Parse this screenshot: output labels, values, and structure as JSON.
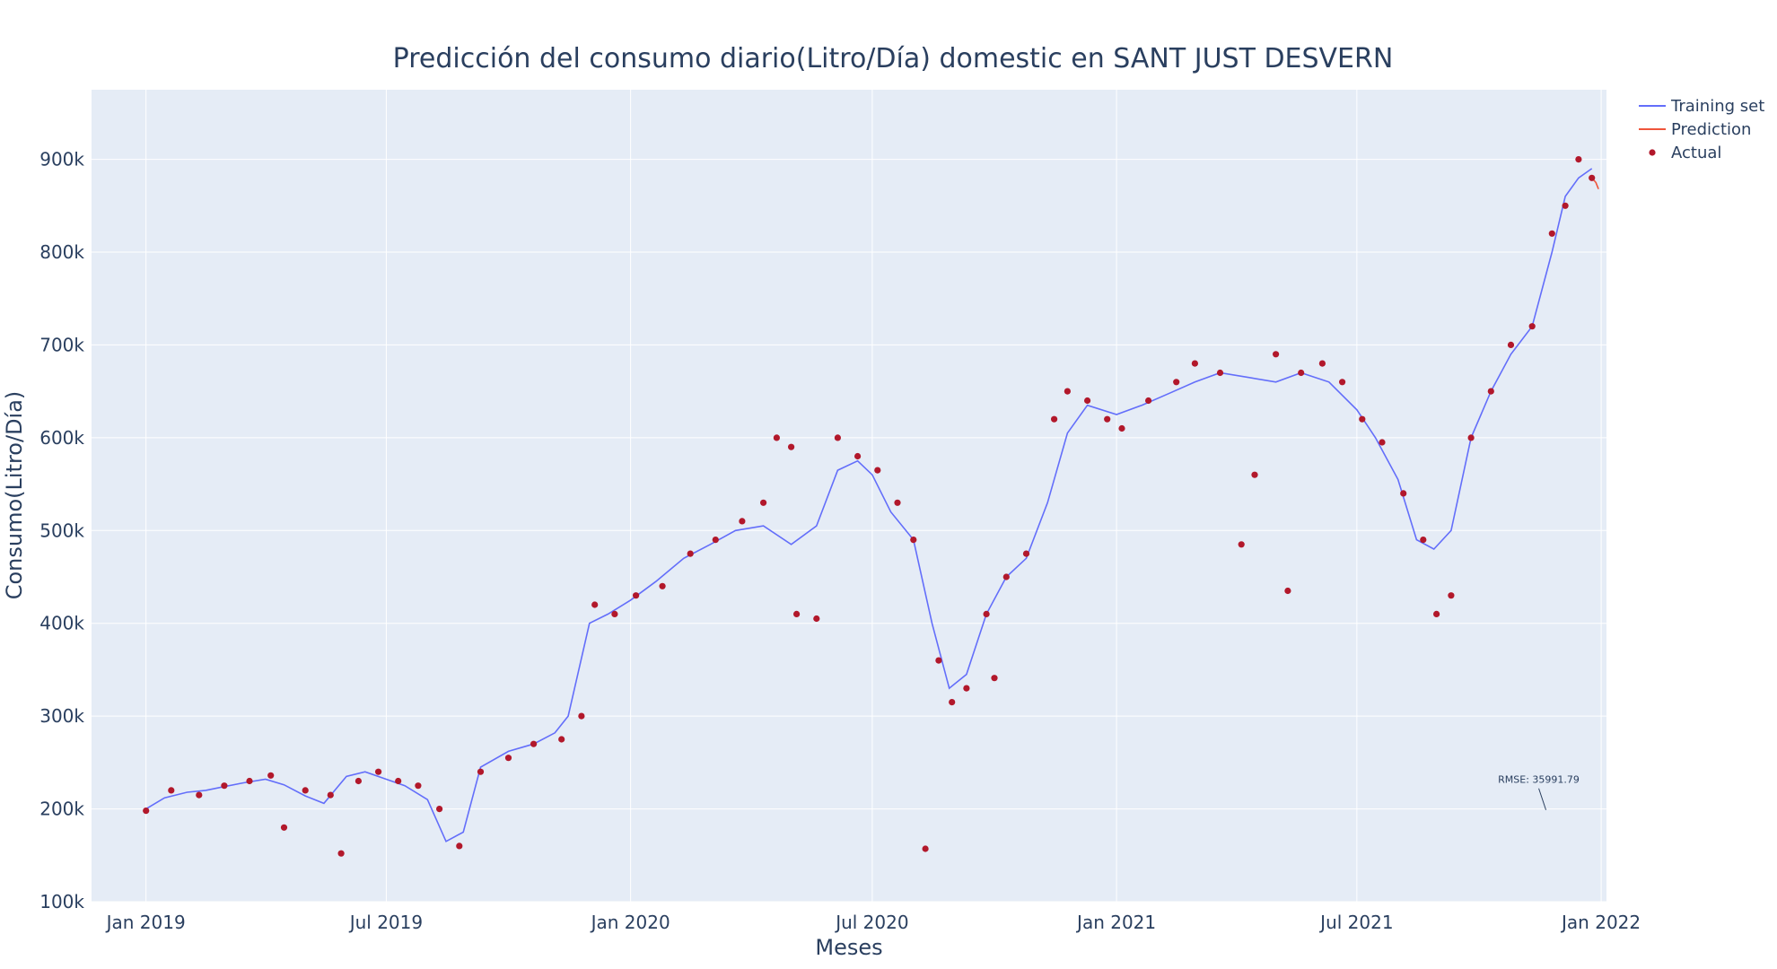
{
  "chart_data": {
    "type": "line",
    "title": "Predicción del consumo diario(Litro/Día) domestic en SANT JUST DESVERN",
    "xlabel": "Meses",
    "ylabel": "Consumo(Litro/Día)",
    "ylim": [
      100000,
      975000
    ],
    "xlim": [
      "2018-11-21",
      "2022-01-05"
    ],
    "grid": true,
    "legend_position": "top-right",
    "x_ticks": [
      {
        "date": "2019-01-01",
        "label": "Jan 2019"
      },
      {
        "date": "2019-07-01",
        "label": "Jul 2019"
      },
      {
        "date": "2020-01-01",
        "label": "Jan 2020"
      },
      {
        "date": "2020-07-01",
        "label": "Jul 2020"
      },
      {
        "date": "2021-01-01",
        "label": "Jan 2021"
      },
      {
        "date": "2021-07-01",
        "label": "Jul 2021"
      },
      {
        "date": "2022-01-01",
        "label": "Jan 2022"
      }
    ],
    "y_ticks": [
      {
        "value": 100000,
        "label": "100k"
      },
      {
        "value": 200000,
        "label": "200k"
      },
      {
        "value": 300000,
        "label": "300k"
      },
      {
        "value": 400000,
        "label": "400k"
      },
      {
        "value": 500000,
        "label": "500k"
      },
      {
        "value": 600000,
        "label": "600k"
      },
      {
        "value": 700000,
        "label": "700k"
      },
      {
        "value": 800000,
        "label": "800k"
      },
      {
        "value": 900000,
        "label": "900k"
      }
    ],
    "series": [
      {
        "name": "Training set",
        "kind": "line",
        "color": "#636efa",
        "points": [
          [
            "2019-01-01",
            200000
          ],
          [
            "2019-01-15",
            212000
          ],
          [
            "2019-02-01",
            218000
          ],
          [
            "2019-02-15",
            220000
          ],
          [
            "2019-03-01",
            224000
          ],
          [
            "2019-03-15",
            228000
          ],
          [
            "2019-04-01",
            232000
          ],
          [
            "2019-04-15",
            226000
          ],
          [
            "2019-05-01",
            214000
          ],
          [
            "2019-05-15",
            206000
          ],
          [
            "2019-06-01",
            235000
          ],
          [
            "2019-06-15",
            240000
          ],
          [
            "2019-07-01",
            232000
          ],
          [
            "2019-07-15",
            225000
          ],
          [
            "2019-08-01",
            210000
          ],
          [
            "2019-08-15",
            165000
          ],
          [
            "2019-08-28",
            175000
          ],
          [
            "2019-09-10",
            245000
          ],
          [
            "2019-10-01",
            262000
          ],
          [
            "2019-10-20",
            270000
          ],
          [
            "2019-11-05",
            282000
          ],
          [
            "2019-11-15",
            300000
          ],
          [
            "2019-12-01",
            400000
          ],
          [
            "2019-12-15",
            410000
          ],
          [
            "2020-01-01",
            425000
          ],
          [
            "2020-01-20",
            445000
          ],
          [
            "2020-02-10",
            470000
          ],
          [
            "2020-03-01",
            485000
          ],
          [
            "2020-03-20",
            500000
          ],
          [
            "2020-04-10",
            505000
          ],
          [
            "2020-05-01",
            485000
          ],
          [
            "2020-05-20",
            505000
          ],
          [
            "2020-06-05",
            565000
          ],
          [
            "2020-06-20",
            575000
          ],
          [
            "2020-07-01",
            560000
          ],
          [
            "2020-07-15",
            520000
          ],
          [
            "2020-08-01",
            490000
          ],
          [
            "2020-08-15",
            400000
          ],
          [
            "2020-08-28",
            330000
          ],
          [
            "2020-09-10",
            345000
          ],
          [
            "2020-09-25",
            410000
          ],
          [
            "2020-10-10",
            450000
          ],
          [
            "2020-10-25",
            470000
          ],
          [
            "2020-11-10",
            530000
          ],
          [
            "2020-11-25",
            605000
          ],
          [
            "2020-12-10",
            635000
          ],
          [
            "2021-01-01",
            625000
          ],
          [
            "2021-01-20",
            635000
          ],
          [
            "2021-02-10",
            648000
          ],
          [
            "2021-03-01",
            660000
          ],
          [
            "2021-03-20",
            670000
          ],
          [
            "2021-04-10",
            665000
          ],
          [
            "2021-05-01",
            660000
          ],
          [
            "2021-05-20",
            670000
          ],
          [
            "2021-06-10",
            660000
          ],
          [
            "2021-07-01",
            630000
          ],
          [
            "2021-07-15",
            600000
          ],
          [
            "2021-08-01",
            555000
          ],
          [
            "2021-08-15",
            490000
          ],
          [
            "2021-08-28",
            480000
          ],
          [
            "2021-09-10",
            500000
          ],
          [
            "2021-09-25",
            600000
          ],
          [
            "2021-10-10",
            650000
          ],
          [
            "2021-10-25",
            690000
          ],
          [
            "2021-11-10",
            720000
          ],
          [
            "2021-11-25",
            800000
          ],
          [
            "2021-12-05",
            860000
          ],
          [
            "2021-12-15",
            880000
          ],
          [
            "2021-12-25",
            890000
          ]
        ]
      },
      {
        "name": "Prediction",
        "kind": "line",
        "color": "#ef553b",
        "points": [
          [
            "2021-12-25",
            880000
          ],
          [
            "2021-12-28",
            875000
          ],
          [
            "2021-12-30",
            868000
          ]
        ]
      },
      {
        "name": "Actual",
        "kind": "markers",
        "color": "#b2182b",
        "points": [
          [
            "2019-01-01",
            198000
          ],
          [
            "2019-01-20",
            220000
          ],
          [
            "2019-02-10",
            215000
          ],
          [
            "2019-03-01",
            225000
          ],
          [
            "2019-03-20",
            230000
          ],
          [
            "2019-04-05",
            236000
          ],
          [
            "2019-04-15",
            180000
          ],
          [
            "2019-05-01",
            220000
          ],
          [
            "2019-05-20",
            215000
          ],
          [
            "2019-05-28",
            152000
          ],
          [
            "2019-06-10",
            230000
          ],
          [
            "2019-06-25",
            240000
          ],
          [
            "2019-07-10",
            230000
          ],
          [
            "2019-07-25",
            225000
          ],
          [
            "2019-08-10",
            200000
          ],
          [
            "2019-08-25",
            160000
          ],
          [
            "2019-09-10",
            240000
          ],
          [
            "2019-10-01",
            255000
          ],
          [
            "2019-10-20",
            270000
          ],
          [
            "2019-11-10",
            275000
          ],
          [
            "2019-11-25",
            300000
          ],
          [
            "2019-12-05",
            420000
          ],
          [
            "2019-12-20",
            410000
          ],
          [
            "2020-01-05",
            430000
          ],
          [
            "2020-01-25",
            440000
          ],
          [
            "2020-02-15",
            475000
          ],
          [
            "2020-03-05",
            490000
          ],
          [
            "2020-03-25",
            510000
          ],
          [
            "2020-04-10",
            530000
          ],
          [
            "2020-04-20",
            600000
          ],
          [
            "2020-05-01",
            590000
          ],
          [
            "2020-05-05",
            410000
          ],
          [
            "2020-05-20",
            405000
          ],
          [
            "2020-06-05",
            600000
          ],
          [
            "2020-06-20",
            580000
          ],
          [
            "2020-07-05",
            565000
          ],
          [
            "2020-07-20",
            530000
          ],
          [
            "2020-08-01",
            490000
          ],
          [
            "2020-08-10",
            157000
          ],
          [
            "2020-08-20",
            360000
          ],
          [
            "2020-08-30",
            315000
          ],
          [
            "2020-09-10",
            330000
          ],
          [
            "2020-09-25",
            410000
          ],
          [
            "2020-10-01",
            341000
          ],
          [
            "2020-10-10",
            450000
          ],
          [
            "2020-10-25",
            475000
          ],
          [
            "2020-11-15",
            620000
          ],
          [
            "2020-11-25",
            650000
          ],
          [
            "2020-12-10",
            640000
          ],
          [
            "2020-12-25",
            620000
          ],
          [
            "2021-01-05",
            610000
          ],
          [
            "2021-01-25",
            640000
          ],
          [
            "2021-02-15",
            660000
          ],
          [
            "2021-03-01",
            680000
          ],
          [
            "2021-03-20",
            670000
          ],
          [
            "2021-04-05",
            485000
          ],
          [
            "2021-04-15",
            560000
          ],
          [
            "2021-05-01",
            690000
          ],
          [
            "2021-05-10",
            435000
          ],
          [
            "2021-05-20",
            670000
          ],
          [
            "2021-06-05",
            680000
          ],
          [
            "2021-06-20",
            660000
          ],
          [
            "2021-07-05",
            620000
          ],
          [
            "2021-07-20",
            595000
          ],
          [
            "2021-08-05",
            540000
          ],
          [
            "2021-08-20",
            490000
          ],
          [
            "2021-08-30",
            410000
          ],
          [
            "2021-09-10",
            430000
          ],
          [
            "2021-09-25",
            600000
          ],
          [
            "2021-10-10",
            650000
          ],
          [
            "2021-10-25",
            700000
          ],
          [
            "2021-11-10",
            720000
          ],
          [
            "2021-11-25",
            820000
          ],
          [
            "2021-12-05",
            850000
          ],
          [
            "2021-12-15",
            900000
          ],
          [
            "2021-12-25",
            880000
          ]
        ]
      }
    ],
    "annotations": [
      {
        "text": "RMSE: 35991.79",
        "date": "2021-11-15",
        "value": 195000
      }
    ]
  }
}
